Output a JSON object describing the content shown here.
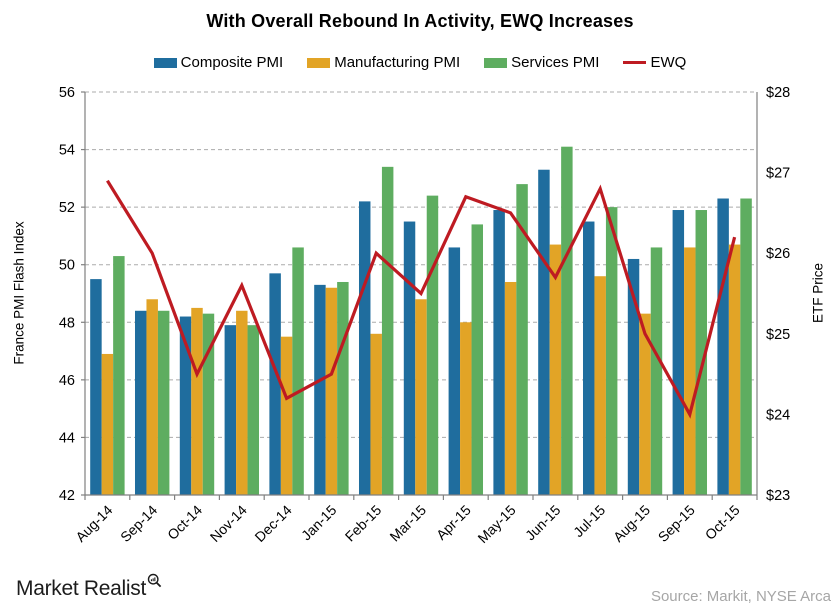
{
  "chart_data": {
    "type": "bar+line",
    "title": "With Overall Rebound In Activity, EWQ Increases",
    "categories": [
      "Aug-14",
      "Sep-14",
      "Oct-14",
      "Nov-14",
      "Dec-14",
      "Jan-15",
      "Feb-15",
      "Mar-15",
      "Apr-15",
      "May-15",
      "Jun-15",
      "Jul-15",
      "Aug-15",
      "Sep-15",
      "Oct-15"
    ],
    "series": [
      {
        "name": "Composite PMI",
        "color": "#1F6D9E",
        "axis": "left",
        "values": [
          49.5,
          48.4,
          48.2,
          47.9,
          49.7,
          49.3,
          52.2,
          51.5,
          50.6,
          51.9,
          53.3,
          51.5,
          50.2,
          51.9,
          52.3
        ]
      },
      {
        "name": "Manufacturing PMI",
        "color": "#E2A426",
        "axis": "left",
        "values": [
          46.9,
          48.8,
          48.5,
          48.4,
          47.5,
          49.2,
          47.6,
          48.8,
          48.0,
          49.4,
          50.7,
          49.6,
          48.3,
          50.6,
          50.7
        ]
      },
      {
        "name": "Services PMI",
        "color": "#5EAD60",
        "axis": "left",
        "values": [
          50.3,
          48.4,
          48.3,
          47.9,
          50.6,
          49.4,
          53.4,
          52.4,
          51.4,
          52.8,
          54.1,
          52.0,
          50.6,
          51.9,
          52.3
        ]
      }
    ],
    "line_series": {
      "name": "EWQ",
      "color": "#BE1B22",
      "axis": "right",
      "values": [
        26.9,
        26.0,
        24.5,
        25.6,
        24.2,
        24.5,
        26.0,
        25.5,
        26.7,
        26.5,
        25.7,
        26.8,
        25.0,
        24.0,
        26.2
      ]
    },
    "ylabel_left": "France PMI Flash Index",
    "ylabel_right": "ETF Price",
    "ylim_left": [
      42,
      56
    ],
    "ylim_right": [
      23,
      28
    ],
    "yticks_left": [
      42,
      44,
      46,
      48,
      50,
      52,
      54,
      56
    ],
    "yticks_right": [
      {
        "value": 23,
        "label": "$23"
      },
      {
        "value": 24,
        "label": "$24"
      },
      {
        "value": 25,
        "label": "$25"
      },
      {
        "value": 26,
        "label": "$26"
      },
      {
        "value": 27,
        "label": "$27"
      },
      {
        "value": 28,
        "label": "$28"
      }
    ],
    "grid": "horizontal-dashed",
    "grid_color": "#ABABAB",
    "axis_color": "#808080",
    "legend_position": "top"
  },
  "footer": {
    "brand": "Market Realist",
    "logo_icon": "magnifier-with-bars-icon",
    "source": "Source: Markit, NYSE Arca"
  }
}
